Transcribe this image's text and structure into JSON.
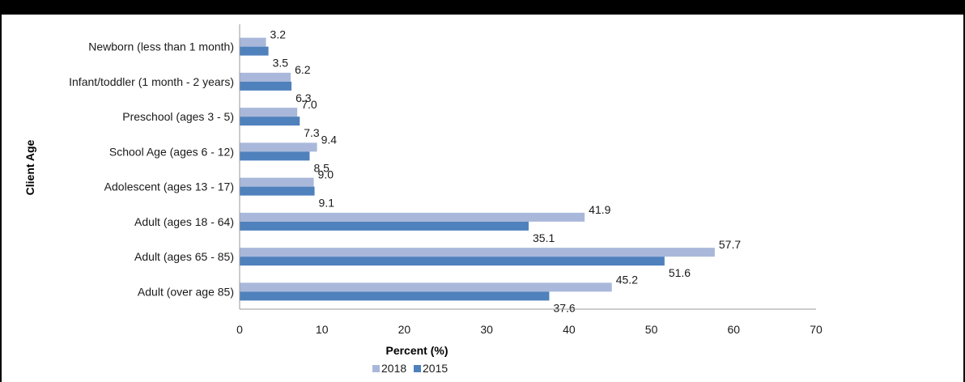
{
  "chart_data": {
    "type": "bar",
    "orientation": "horizontal",
    "categories": [
      "Newborn (less than 1 month)",
      "Infant/toddler (1 month - 2 years)",
      "Preschool (ages 3 - 5)",
      "School Age (ages 6 - 12)",
      "Adolescent (ages 13 - 17)",
      "Adult (ages 18 - 64)",
      "Adult (ages 65 - 85)",
      "Adult (over age 85)"
    ],
    "series": [
      {
        "name": "2018",
        "color": "#a9b8da",
        "values": [
          3.2,
          6.2,
          7.0,
          9.4,
          9.0,
          41.9,
          57.7,
          45.2
        ],
        "labels": [
          "3.2",
          "6.2",
          "7.0",
          "9.4",
          "9.0",
          "41.9",
          "57.7",
          "45.2"
        ]
      },
      {
        "name": "2015",
        "color": "#4f81bd",
        "values": [
          3.5,
          6.3,
          7.3,
          8.5,
          9.1,
          35.1,
          51.6,
          37.6
        ],
        "labels": [
          "3.5",
          "6.3",
          "7.3",
          "8.5",
          "9.1",
          "35.1",
          "51.6",
          "37.6"
        ]
      }
    ],
    "xlabel": "Percent (%)",
    "ylabel": "Client Age",
    "xlim": [
      0,
      70
    ],
    "xticks": [
      0,
      10,
      20,
      30,
      40,
      50,
      60,
      70
    ],
    "grid": false,
    "legend_position": "bottom"
  }
}
